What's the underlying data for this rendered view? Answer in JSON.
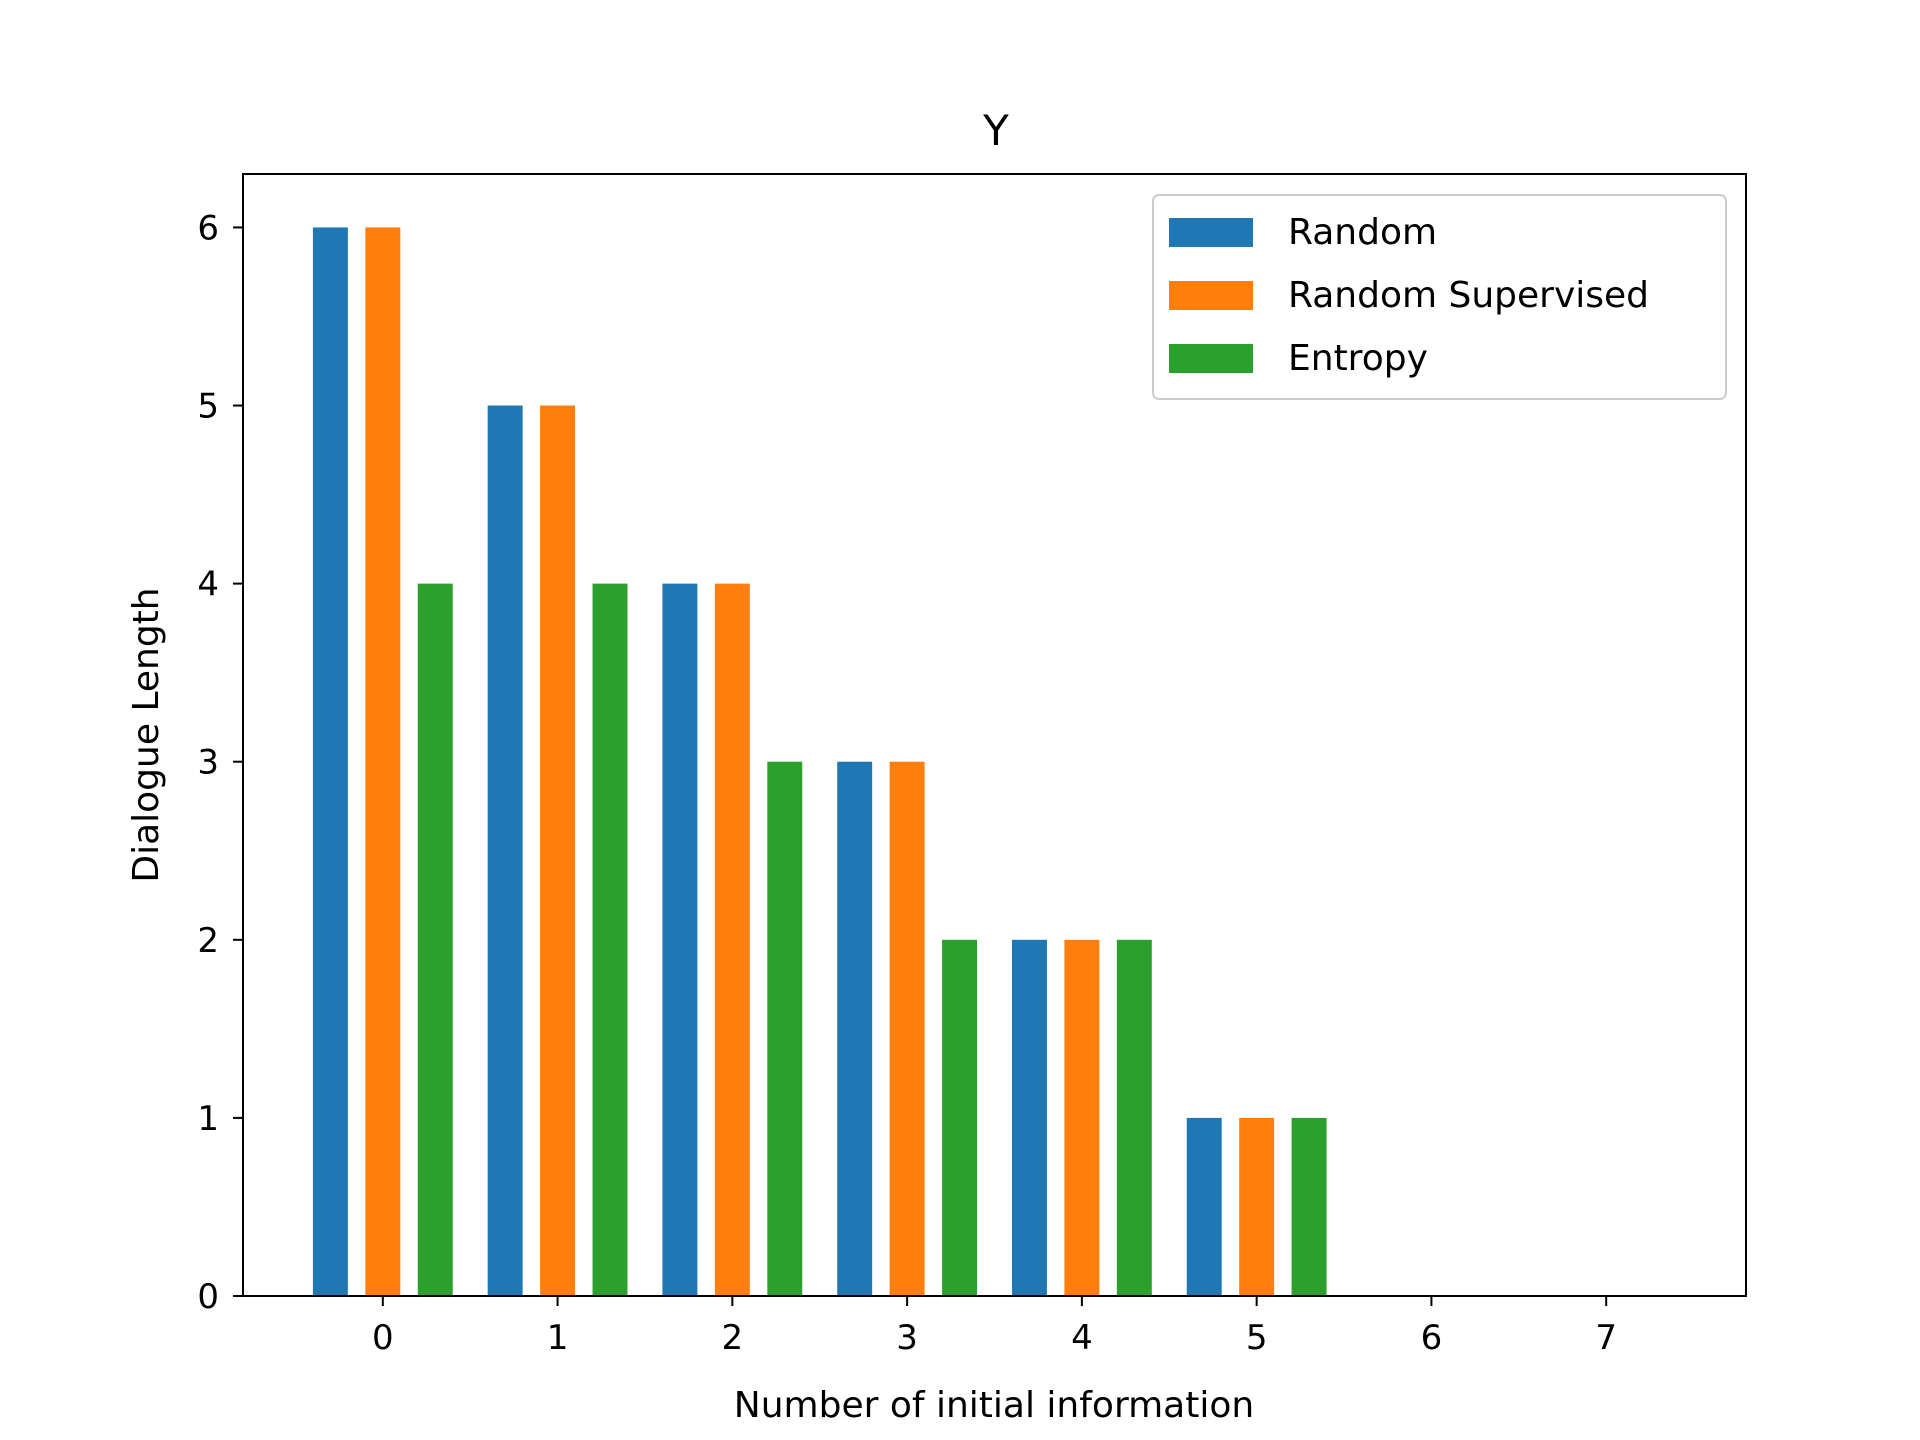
{
  "chart_data": {
    "type": "bar",
    "title": "Y",
    "xlabel": "Number of initial information",
    "ylabel": "Dialogue Length",
    "categories": [
      "0",
      "1",
      "2",
      "3",
      "4",
      "5",
      "6",
      "7"
    ],
    "series": [
      {
        "name": "Random",
        "color": "#1f77b4",
        "values": [
          6,
          5,
          4,
          3,
          2,
          1,
          0,
          0
        ]
      },
      {
        "name": "Random Supervised",
        "color": "#ff7f0e",
        "values": [
          6,
          5,
          4,
          3,
          2,
          1,
          0,
          0
        ]
      },
      {
        "name": "Entropy",
        "color": "#2ca02c",
        "values": [
          4,
          4,
          3,
          2,
          2,
          1,
          0,
          0
        ]
      }
    ],
    "xlim": [
      -0.8,
      7.8
    ],
    "ylim": [
      0,
      6.3
    ],
    "yticks": [
      0,
      1,
      2,
      3,
      4,
      5,
      6
    ],
    "legend_position": "top-right",
    "grid": false
  }
}
